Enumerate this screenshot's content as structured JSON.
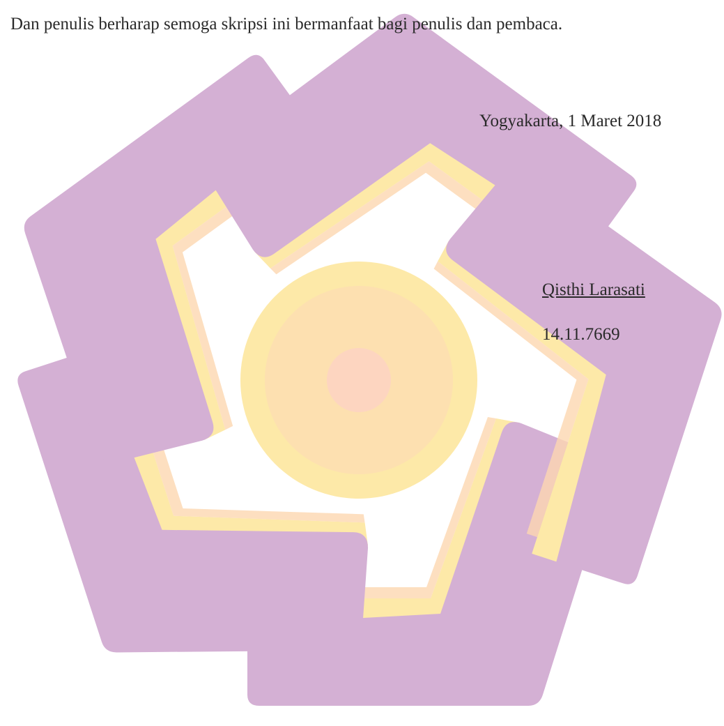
{
  "body": {
    "paragraph": "Dan penulis berharap semoga skripsi ini bermanfaat bagi penulis dan pembaca."
  },
  "signature": {
    "place_date": "Yogyakarta, 1 Maret 2018",
    "name": "Qisthi Larasati",
    "student_id": "14.11.7669"
  }
}
